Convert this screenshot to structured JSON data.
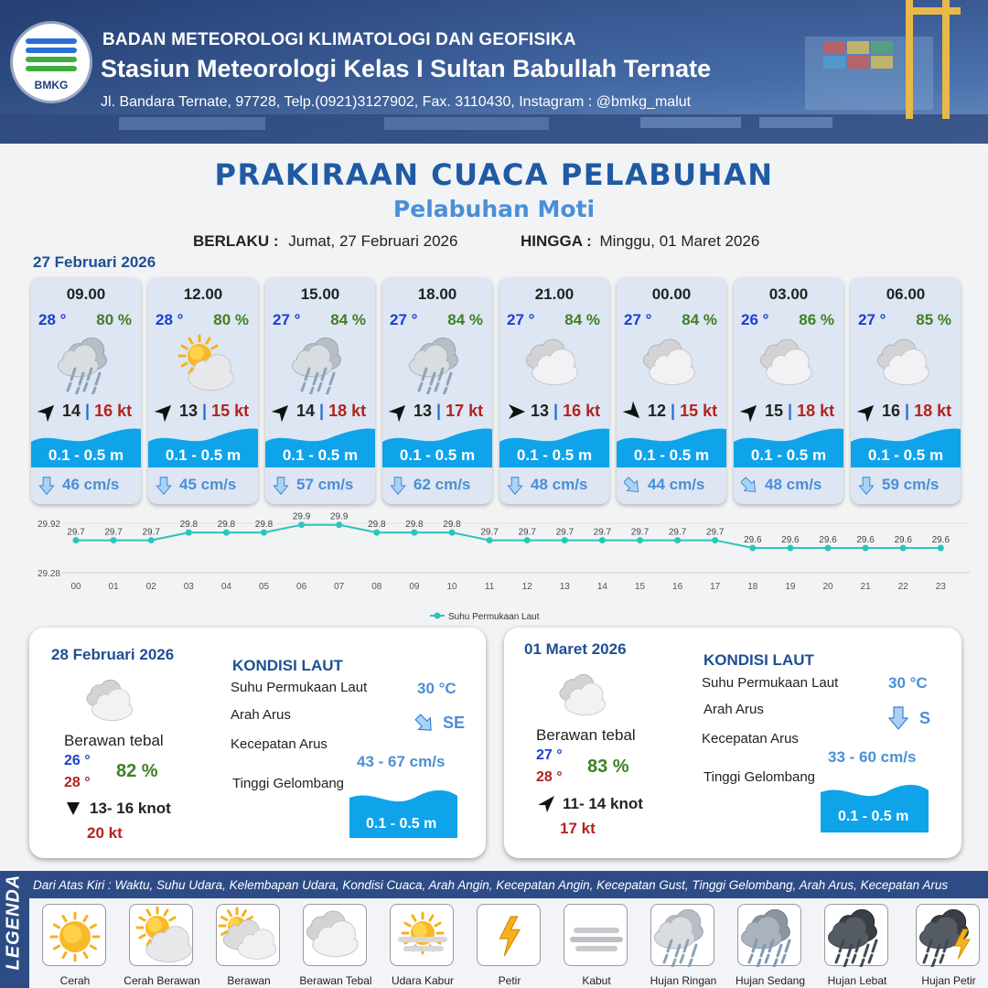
{
  "header": {
    "logo_text": "BMKG",
    "agency": "BADAN METEOROLOGI KLIMATOLOGI DAN GEOFISIKA",
    "station": "Stasiun Meteorologi Kelas I Sultan Babullah Ternate",
    "address": "Jl. Bandara Ternate, 97728, Telp.(0921)3127902, Fax. 3110430, Instagram : @bmkg_malut"
  },
  "title": "PRAKIRAAN CUACA PELABUHAN",
  "subtitle": "Pelabuhan Moti",
  "validity": {
    "from_label": "BERLAKU :",
    "from_value": "Jumat, 27 Februari 2026",
    "to_label": "HINGGA :",
    "to_value": "Minggu, 01 Maret 2026"
  },
  "day1_label": "27 Februari 2026",
  "forecasts": [
    {
      "time": "09.00",
      "temp": "28 °",
      "hum": "80 %",
      "icon": "hujan-ringan",
      "wind_dir": "NE",
      "wind": "14",
      "gust": "16 kt",
      "wave": "0.1 - 0.5 m",
      "current_dir": "S",
      "current": "46 cm/s"
    },
    {
      "time": "12.00",
      "temp": "28 °",
      "hum": "80 %",
      "icon": "cerah-berawan",
      "wind_dir": "NE",
      "wind": "13",
      "gust": "15 kt",
      "wave": "0.1 - 0.5 m",
      "current_dir": "S",
      "current": "45 cm/s"
    },
    {
      "time": "15.00",
      "temp": "27 °",
      "hum": "84 %",
      "icon": "hujan-ringan",
      "wind_dir": "NE",
      "wind": "14",
      "gust": "18 kt",
      "wave": "0.1 - 0.5 m",
      "current_dir": "S",
      "current": "57 cm/s"
    },
    {
      "time": "18.00",
      "temp": "27 °",
      "hum": "84 %",
      "icon": "hujan-ringan",
      "wind_dir": "NE",
      "wind": "13",
      "gust": "17 kt",
      "wave": "0.1 - 0.5 m",
      "current_dir": "S",
      "current": "62 cm/s"
    },
    {
      "time": "21.00",
      "temp": "27 °",
      "hum": "84 %",
      "icon": "berawan-tebal",
      "wind_dir": "E",
      "wind": "13",
      "gust": "16 kt",
      "wave": "0.1 - 0.5 m",
      "current_dir": "S",
      "current": "48 cm/s"
    },
    {
      "time": "00.00",
      "temp": "27 °",
      "hum": "84 %",
      "icon": "berawan-tebal",
      "wind_dir": "SE",
      "wind": "12",
      "gust": "15 kt",
      "wave": "0.1 - 0.5 m",
      "current_dir": "SE",
      "current": "44 cm/s"
    },
    {
      "time": "03.00",
      "temp": "26 °",
      "hum": "86 %",
      "icon": "berawan-tebal",
      "wind_dir": "NE",
      "wind": "15",
      "gust": "18 kt",
      "wave": "0.1 - 0.5 m",
      "current_dir": "SE",
      "current": "48 cm/s"
    },
    {
      "time": "06.00",
      "temp": "27 °",
      "hum": "85 %",
      "icon": "berawan-tebal",
      "wind_dir": "NE",
      "wind": "16",
      "gust": "18 kt",
      "wave": "0.1 - 0.5 m",
      "current_dir": "S",
      "current": "59 cm/s"
    }
  ],
  "chart_data": {
    "type": "line",
    "title": "",
    "x": [
      "00",
      "01",
      "02",
      "03",
      "04",
      "05",
      "06",
      "07",
      "08",
      "09",
      "10",
      "11",
      "12",
      "13",
      "14",
      "15",
      "16",
      "17",
      "18",
      "19",
      "20",
      "21",
      "22",
      "23"
    ],
    "series": [
      {
        "name": "Suhu Permukaan Laut",
        "color": "#2cc4b8",
        "values": [
          29.7,
          29.7,
          29.7,
          29.8,
          29.8,
          29.8,
          29.9,
          29.9,
          29.8,
          29.8,
          29.8,
          29.7,
          29.7,
          29.7,
          29.7,
          29.7,
          29.7,
          29.7,
          29.6,
          29.6,
          29.6,
          29.6,
          29.6,
          29.6
        ],
        "labels": [
          "29.7",
          "29.7",
          "29.7",
          "29.8",
          "29.8",
          "29.8",
          "29.9",
          "29.9",
          "29.8",
          "29.8",
          "29.8",
          "29.7",
          "29.7",
          "29.7",
          "29.7",
          "29.7",
          "29.7",
          "29.7",
          "29.6",
          "29.6",
          "29.6",
          "29.6",
          "29.6",
          "29.6"
        ]
      }
    ],
    "ylim": [
      29.28,
      29.92
    ],
    "yticks": [
      "29.92",
      "29.28"
    ],
    "legend": "bottom"
  },
  "days": [
    {
      "date": "28 Februari 2026",
      "condition": "Berawan tebal",
      "icon": "berawan-tebal",
      "tmin": "26 °",
      "tmax": "28 °",
      "hum": "82 %",
      "wind_dir": "N",
      "wind": "13- 16 knot",
      "gust": "20 kt",
      "kondisi_title": "KONDISI LAUT",
      "sst_label": "Suhu Permukaan Laut",
      "sst": "30 °C",
      "arah_label": "Arah Arus",
      "arah": "SE",
      "kec_label": "Kecepatan Arus",
      "kec": "43  - 67 cm/s",
      "tinggi_label": "Tinggi Gelombang",
      "wave": "0.1 - 0.5 m"
    },
    {
      "date": "01 Maret 2026",
      "condition": "Berawan tebal",
      "icon": "berawan-tebal",
      "tmin": "27 °",
      "tmax": "28 °",
      "hum": "83 %",
      "wind_dir": "NE",
      "wind": "11- 14 knot",
      "gust": "17 kt",
      "kondisi_title": "KONDISI LAUT",
      "sst_label": "Suhu Permukaan Laut",
      "sst": "30 °C",
      "arah_label": "Arah Arus",
      "arah": "S",
      "kec_label": "Kecepatan Arus",
      "kec": "33  - 60 cm/s",
      "tinggi_label": "Tinggi Gelombang",
      "wave": "0.1 - 0.5 m"
    }
  ],
  "legend": {
    "side_label": "LEGENDA",
    "description": "Dari Atas Kiri : Waktu, Suhu Udara, Kelembapan Udara, Kondisi Cuaca, Arah Angin, Kecepatan Angin, Kecepatan Gust, Tinggi Gelombang, Arah Arus, Kecepatan Arus",
    "items": [
      {
        "label": "Cerah",
        "icon": "cerah"
      },
      {
        "label": "Cerah Berawan",
        "icon": "cerah-berawan"
      },
      {
        "label": "Berawan",
        "icon": "berawan"
      },
      {
        "label": "Berawan Tebal",
        "icon": "berawan-tebal"
      },
      {
        "label": "Udara Kabur",
        "icon": "udara-kabur"
      },
      {
        "label": "Petir",
        "icon": "petir"
      },
      {
        "label": "Kabut",
        "icon": "kabut"
      },
      {
        "label": "Hujan Ringan",
        "icon": "hujan-ringan"
      },
      {
        "label": "Hujan Sedang",
        "icon": "hujan-sedang"
      },
      {
        "label": "Hujan Lebat",
        "icon": "hujan-lebat"
      },
      {
        "label": "Hujan Petir",
        "icon": "hujan-petir"
      }
    ]
  },
  "colors": {
    "primary": "#1f5aa3",
    "accent": "#4a8fd6",
    "wave": "#0fa3ea",
    "gust": "#b3231f",
    "temp": "#1b3fd1",
    "humidity": "#3f7f24"
  }
}
